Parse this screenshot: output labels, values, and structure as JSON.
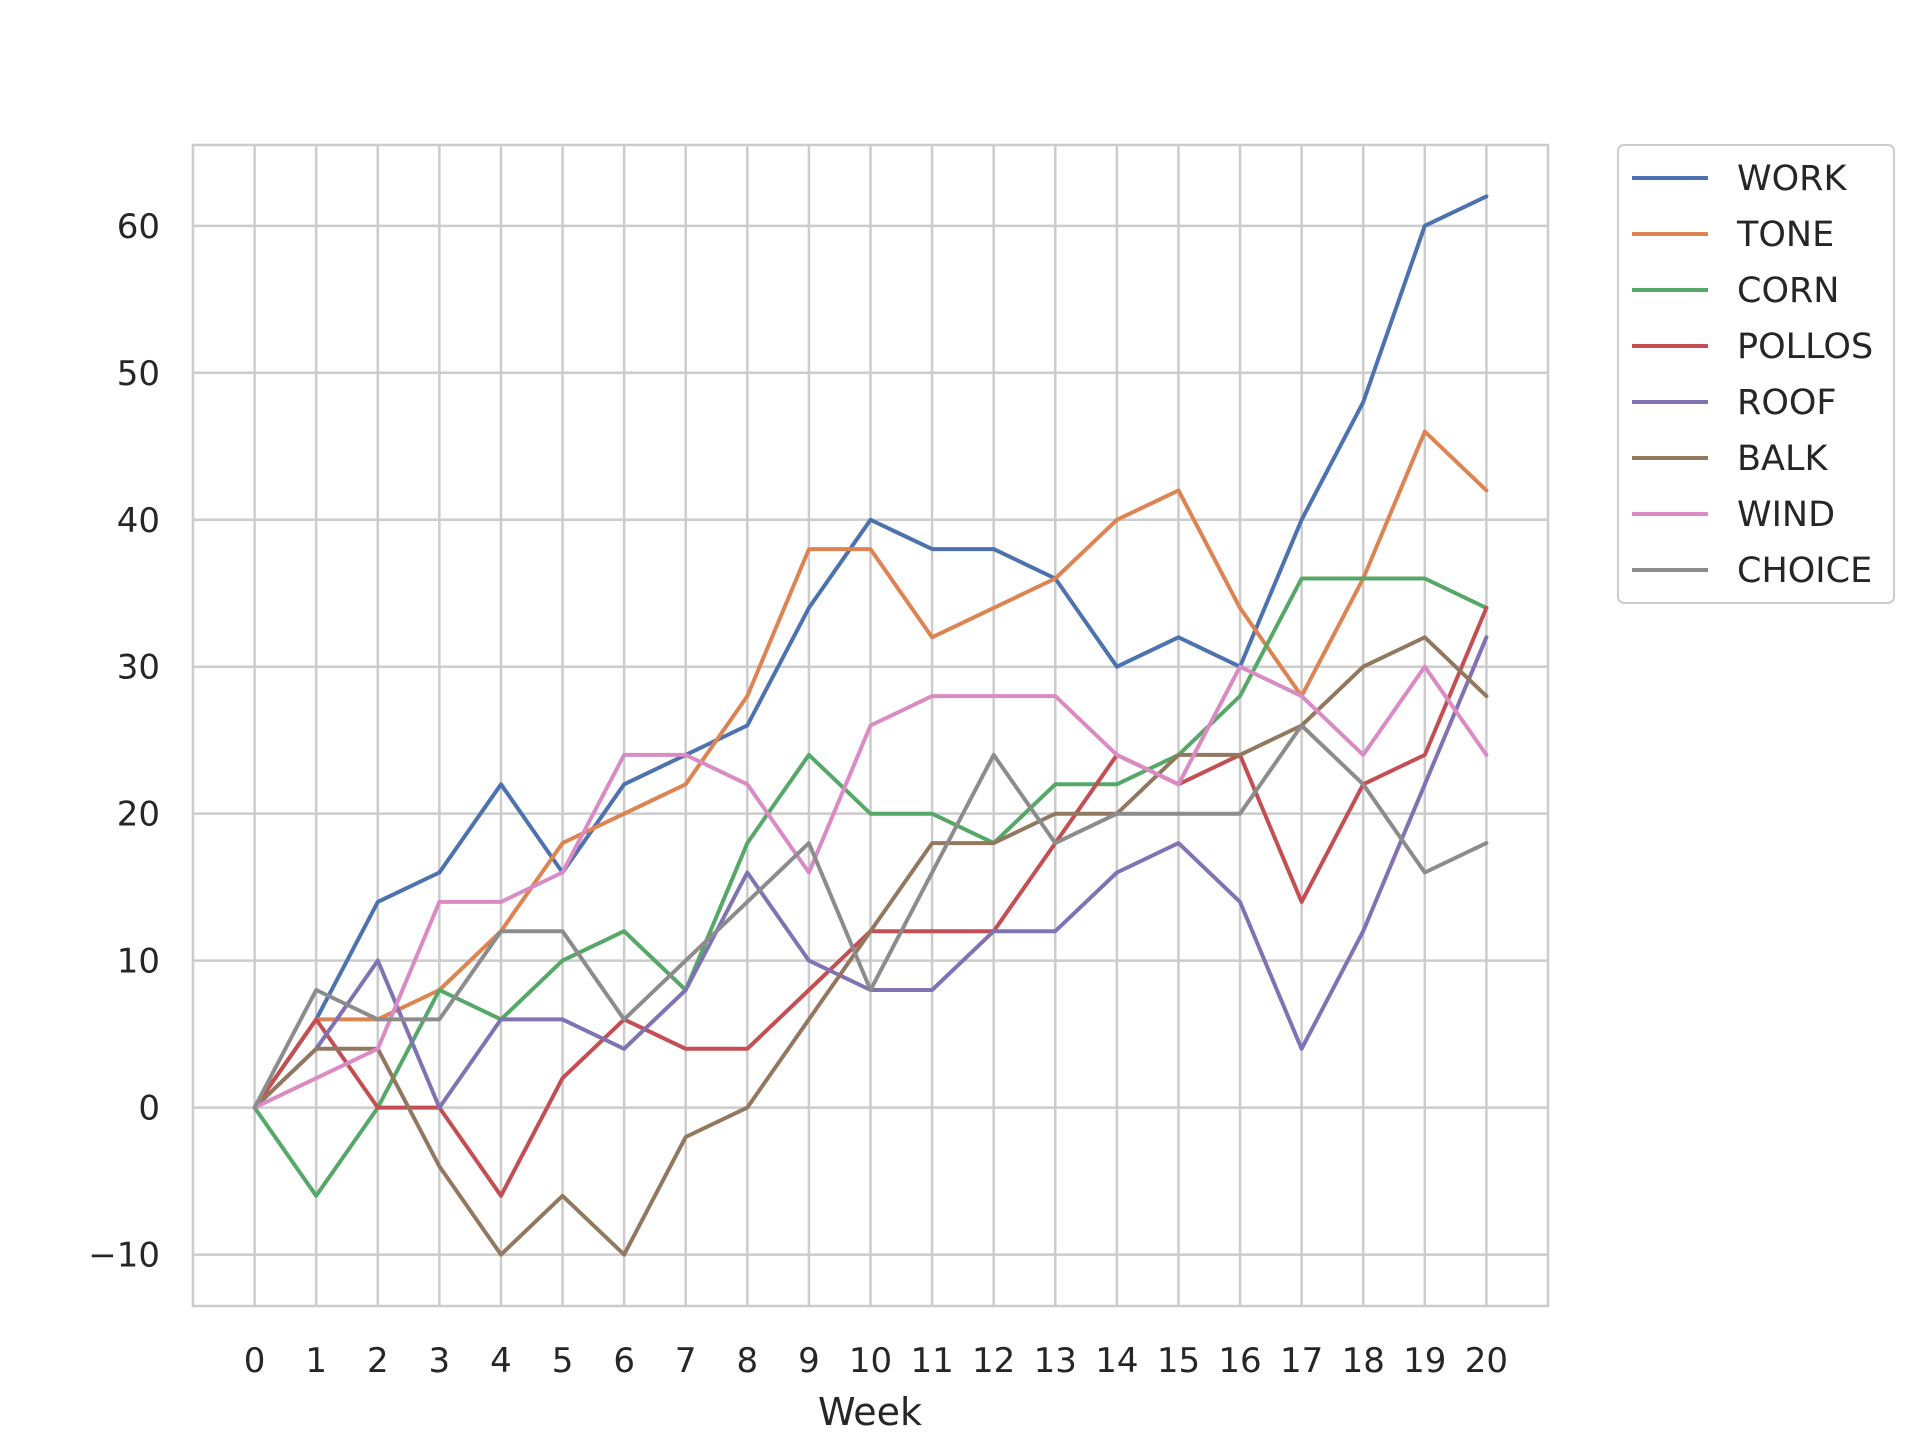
{
  "chart_data": {
    "type": "line",
    "title": "",
    "xlabel": "Week",
    "ylabel": "",
    "x": [
      0,
      1,
      2,
      3,
      4,
      5,
      6,
      7,
      8,
      9,
      10,
      11,
      12,
      13,
      14,
      15,
      16,
      17,
      18,
      19,
      20
    ],
    "xlim": [
      -1,
      21
    ],
    "ylim": [
      -13.5,
      65.5
    ],
    "yticks": [
      -10,
      0,
      10,
      20,
      30,
      40,
      50,
      60
    ],
    "ytick_labels": [
      "−10",
      "0",
      "10",
      "20",
      "30",
      "40",
      "50",
      "60"
    ],
    "grid": true,
    "legend_position": "outside-right-top",
    "series": [
      {
        "name": "WORK",
        "color": "#4c72b0",
        "values": [
          0,
          6,
          14,
          16,
          22,
          16,
          22,
          24,
          26,
          34,
          40,
          38,
          38,
          36,
          30,
          32,
          30,
          40,
          48,
          60,
          62
        ]
      },
      {
        "name": "TONE",
        "color": "#dd8452",
        "values": [
          0,
          6,
          6,
          8,
          12,
          18,
          20,
          22,
          28,
          38,
          38,
          32,
          34,
          36,
          40,
          42,
          34,
          28,
          36,
          46,
          42
        ]
      },
      {
        "name": "CORN",
        "color": "#55a868",
        "values": [
          0,
          -6,
          0,
          8,
          6,
          10,
          12,
          8,
          18,
          24,
          20,
          20,
          18,
          22,
          22,
          24,
          28,
          36,
          36,
          36,
          34
        ]
      },
      {
        "name": "POLLOS",
        "color": "#c44e52",
        "values": [
          0,
          6,
          0,
          0,
          -6,
          2,
          6,
          4,
          4,
          8,
          12,
          12,
          12,
          18,
          24,
          22,
          24,
          14,
          22,
          24,
          34
        ]
      },
      {
        "name": "ROOF",
        "color": "#8172b3",
        "values": [
          0,
          4,
          10,
          0,
          6,
          6,
          4,
          8,
          16,
          10,
          8,
          8,
          12,
          12,
          16,
          18,
          14,
          4,
          12,
          22,
          32
        ]
      },
      {
        "name": "BALK",
        "color": "#937860",
        "values": [
          0,
          4,
          4,
          -4,
          -10,
          -6,
          -10,
          -2,
          0,
          6,
          12,
          18,
          18,
          20,
          20,
          24,
          24,
          26,
          30,
          32,
          28
        ]
      },
      {
        "name": "WIND",
        "color": "#da8bc3",
        "values": [
          0,
          2,
          4,
          14,
          14,
          16,
          24,
          24,
          22,
          16,
          26,
          28,
          28,
          28,
          24,
          22,
          30,
          28,
          24,
          30,
          24
        ]
      },
      {
        "name": "CHOICE",
        "color": "#8c8c8c",
        "values": [
          0,
          8,
          6,
          6,
          12,
          12,
          6,
          10,
          14,
          18,
          8,
          16,
          24,
          18,
          20,
          20,
          20,
          26,
          22,
          16,
          18
        ]
      }
    ]
  }
}
